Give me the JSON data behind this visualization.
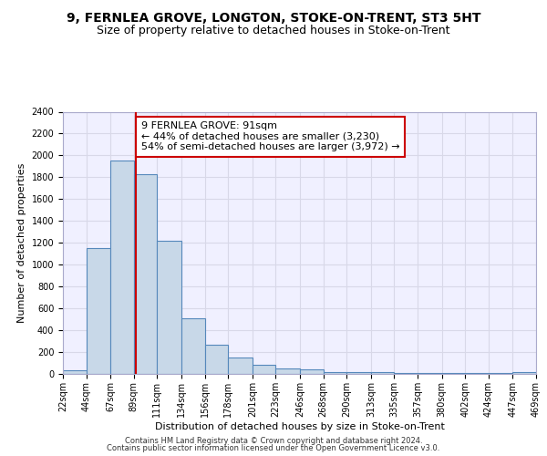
{
  "title1": "9, FERNLEA GROVE, LONGTON, STOKE-ON-TRENT, ST3 5HT",
  "title2": "Size of property relative to detached houses in Stoke-on-Trent",
  "xlabel": "Distribution of detached houses by size in Stoke-on-Trent",
  "ylabel": "Number of detached properties",
  "bin_edges": [
    22,
    44,
    67,
    89,
    111,
    134,
    156,
    178,
    201,
    223,
    246,
    268,
    290,
    313,
    335,
    357,
    380,
    402,
    424,
    447,
    469
  ],
  "bar_heights": [
    30,
    1150,
    1950,
    1830,
    1220,
    510,
    265,
    150,
    85,
    50,
    40,
    20,
    20,
    20,
    8,
    8,
    5,
    5,
    5,
    15
  ],
  "bar_color": "#c8d8e8",
  "bar_edge_color": "#5588bb",
  "property_size": 91,
  "vline_color": "#cc0000",
  "annotation_line1": "9 FERNLEA GROVE: 91sqm",
  "annotation_line2": "← 44% of detached houses are smaller (3,230)",
  "annotation_line3": "54% of semi-detached houses are larger (3,972) →",
  "annotation_box_color": "#ffffff",
  "annotation_box_edge": "#cc0000",
  "ylim": [
    0,
    2400
  ],
  "yticks": [
    0,
    200,
    400,
    600,
    800,
    1000,
    1200,
    1400,
    1600,
    1800,
    2000,
    2200,
    2400
  ],
  "footer1": "Contains HM Land Registry data © Crown copyright and database right 2024.",
  "footer2": "Contains public sector information licensed under the Open Government Licence v3.0.",
  "grid_color": "#d8d8e8",
  "background_color": "#f0f0ff",
  "title1_fontsize": 10,
  "title2_fontsize": 9,
  "tick_label_fontsize": 7,
  "ylabel_fontsize": 8,
  "xlabel_fontsize": 8,
  "annotation_fontsize": 8
}
